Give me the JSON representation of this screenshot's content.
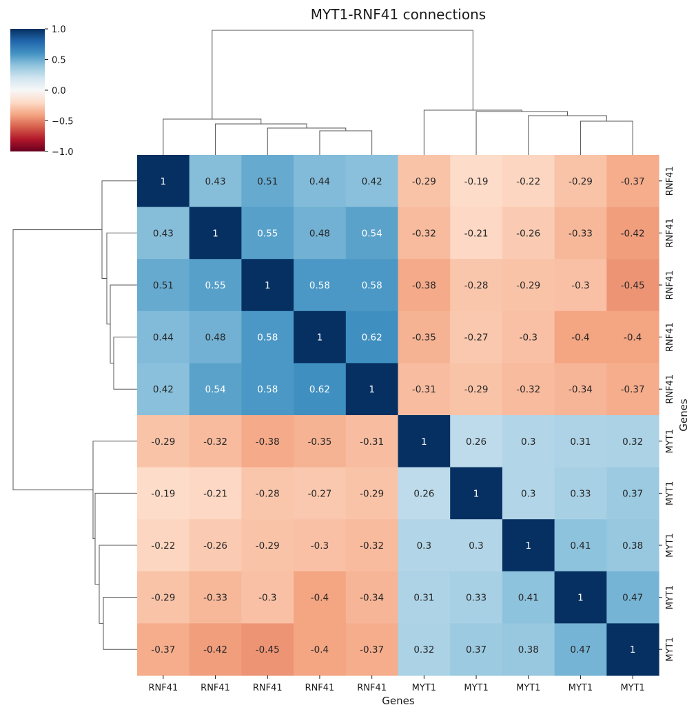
{
  "chart_data": {
    "type": "heatmap",
    "title": "MYT1-RNF41 connections",
    "xlabel": "Genes",
    "ylabel": "Genes",
    "row_labels": [
      "RNF41",
      "RNF41",
      "RNF41",
      "RNF41",
      "RNF41",
      "MYT1",
      "MYT1",
      "MYT1",
      "MYT1",
      "MYT1"
    ],
    "col_labels": [
      "RNF41",
      "RNF41",
      "RNF41",
      "RNF41",
      "RNF41",
      "MYT1",
      "MYT1",
      "MYT1",
      "MYT1",
      "MYT1"
    ],
    "values": [
      [
        1,
        0.43,
        0.51,
        0.44,
        0.42,
        -0.29,
        -0.19,
        -0.22,
        -0.29,
        -0.37
      ],
      [
        0.43,
        1,
        0.55,
        0.48,
        0.54,
        -0.32,
        -0.21,
        -0.26,
        -0.33,
        -0.42
      ],
      [
        0.51,
        0.55,
        1,
        0.58,
        0.58,
        -0.38,
        -0.28,
        -0.29,
        -0.3,
        -0.45
      ],
      [
        0.44,
        0.48,
        0.58,
        1,
        0.62,
        -0.35,
        -0.27,
        -0.3,
        -0.4,
        -0.4
      ],
      [
        0.42,
        0.54,
        0.58,
        0.62,
        1,
        -0.31,
        -0.29,
        -0.32,
        -0.34,
        -0.37
      ],
      [
        -0.29,
        -0.32,
        -0.38,
        -0.35,
        -0.31,
        1,
        0.26,
        0.3,
        0.31,
        0.32
      ],
      [
        -0.19,
        -0.21,
        -0.28,
        -0.27,
        -0.29,
        0.26,
        1,
        0.3,
        0.33,
        0.37
      ],
      [
        -0.22,
        -0.26,
        -0.29,
        -0.3,
        -0.32,
        0.3,
        0.3,
        1,
        0.41,
        0.38
      ],
      [
        -0.29,
        -0.33,
        -0.3,
        -0.4,
        -0.34,
        0.31,
        0.33,
        0.41,
        1,
        0.47
      ],
      [
        -0.37,
        -0.42,
        -0.45,
        -0.4,
        -0.37,
        0.32,
        0.37,
        0.38,
        0.47,
        1
      ]
    ],
    "color_scale": {
      "name": "RdBu",
      "vmin": -1.0,
      "vmax": 1.0,
      "ticks": [
        1.0,
        0.5,
        0.0,
        -0.5,
        -1.0
      ],
      "tick_labels": [
        "1.0",
        "0.5",
        "0.0",
        "−0.5",
        "−1.0"
      ]
    },
    "dendrogram": {
      "type": "hierarchical",
      "leaf_order": [
        "RNF41",
        "RNF41",
        "RNF41",
        "RNF41",
        "RNF41",
        "MYT1",
        "MYT1",
        "MYT1",
        "MYT1",
        "MYT1"
      ]
    },
    "grid": false,
    "colorbar_position": "top-left"
  }
}
